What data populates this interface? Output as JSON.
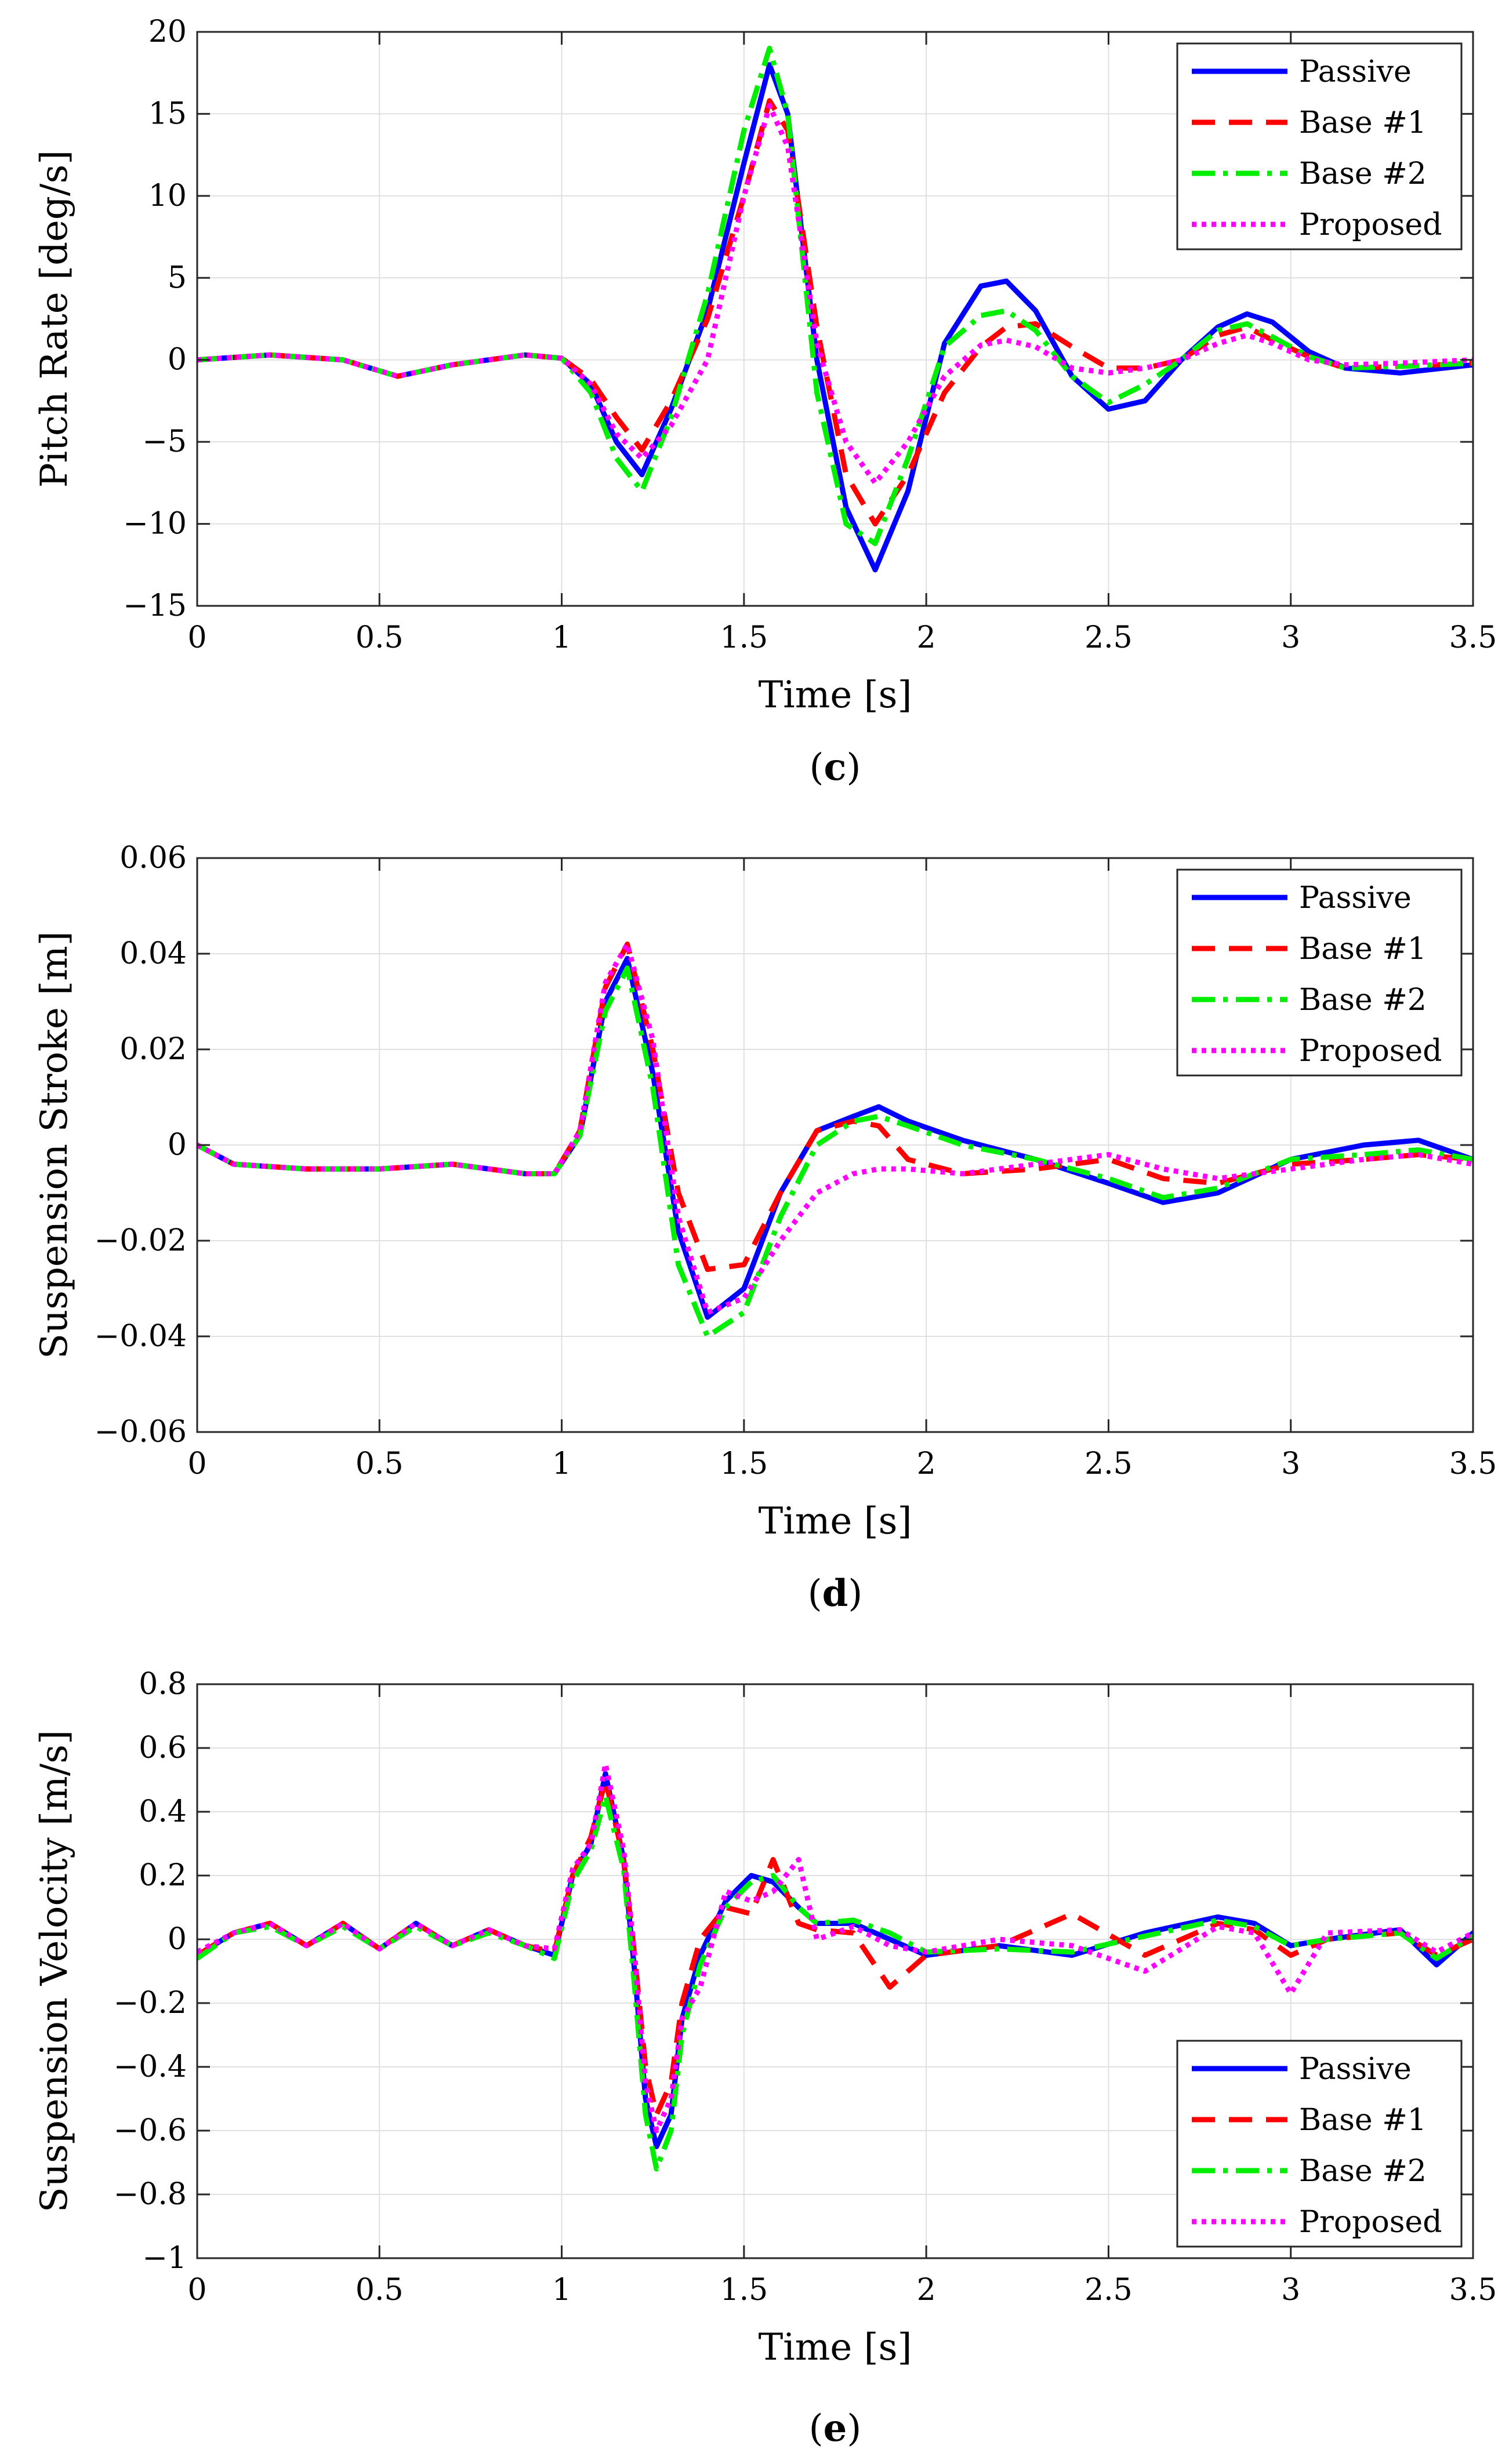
{
  "figure": {
    "series_styles": [
      {
        "name": "Passive",
        "color": "#0000ff",
        "dash": ""
      },
      {
        "name": "Base #1",
        "color": "#ff0000",
        "dash": "40 24"
      },
      {
        "name": "Base #2",
        "color": "#00ee00",
        "dash": "40 14 8 14"
      },
      {
        "name": "Proposed",
        "color": "#ff00ff",
        "dash": "8 9"
      }
    ]
  },
  "chart_data": [
    {
      "id": "c",
      "type": "line",
      "caption_letter": "c",
      "title": "",
      "xlabel": "Time [s]",
      "ylabel": "Pitch Rate [deg/s]",
      "xlim": [
        0,
        3.5
      ],
      "ylim": [
        -15,
        20
      ],
      "xticks": [
        0,
        0.5,
        1,
        1.5,
        2,
        2.5,
        3,
        3.5
      ],
      "xtick_labels": [
        "0",
        "0.5",
        "1",
        "1.5",
        "2",
        "2.5",
        "3",
        "3.5"
      ],
      "yticks": [
        -15,
        -10,
        -5,
        0,
        5,
        10,
        15,
        20
      ],
      "ytick_labels": [
        "−15",
        "−10",
        "−5",
        "0",
        "5",
        "10",
        "15",
        "20"
      ],
      "grid": true,
      "legend_position": "top-right",
      "series": [
        {
          "name": "Passive",
          "x": [
            0,
            0.2,
            0.4,
            0.55,
            0.7,
            0.9,
            1.0,
            1.08,
            1.15,
            1.22,
            1.3,
            1.4,
            1.5,
            1.57,
            1.62,
            1.7,
            1.78,
            1.86,
            1.95,
            2.05,
            2.15,
            2.22,
            2.3,
            2.4,
            2.5,
            2.6,
            2.7,
            2.8,
            2.88,
            2.95,
            3.05,
            3.15,
            3.3,
            3.5
          ],
          "y": [
            0,
            0.3,
            0,
            -1,
            -0.3,
            0.3,
            0.1,
            -1.5,
            -5,
            -7,
            -3,
            3,
            12,
            18,
            15,
            0,
            -9,
            -12.8,
            -8,
            1,
            4.5,
            4.8,
            3,
            -1,
            -3,
            -2.5,
            0,
            2,
            2.8,
            2.3,
            0.5,
            -0.5,
            -0.8,
            -0.3
          ]
        },
        {
          "name": "Base #1",
          "x": [
            0,
            0.2,
            0.4,
            0.55,
            0.7,
            0.9,
            1.0,
            1.08,
            1.15,
            1.22,
            1.3,
            1.4,
            1.5,
            1.57,
            1.62,
            1.7,
            1.78,
            1.86,
            1.95,
            2.05,
            2.15,
            2.22,
            2.3,
            2.4,
            2.5,
            2.6,
            2.7,
            2.8,
            2.88,
            2.95,
            3.05,
            3.15,
            3.3,
            3.5
          ],
          "y": [
            0,
            0.3,
            0,
            -1,
            -0.3,
            0.3,
            0.1,
            -1.2,
            -3.5,
            -5.5,
            -2.5,
            2.5,
            10,
            15.8,
            14,
            2,
            -7,
            -10,
            -7,
            -2,
            0.8,
            2,
            2.2,
            0.8,
            -0.5,
            -0.5,
            0,
            1.5,
            2,
            1.2,
            0.2,
            -0.5,
            -0.4,
            -0.2
          ]
        },
        {
          "name": "Base #2",
          "x": [
            0,
            0.2,
            0.4,
            0.55,
            0.7,
            0.9,
            1.0,
            1.08,
            1.15,
            1.22,
            1.3,
            1.4,
            1.5,
            1.57,
            1.62,
            1.7,
            1.78,
            1.86,
            1.95,
            2.05,
            2.15,
            2.22,
            2.3,
            2.4,
            2.5,
            2.6,
            2.7,
            2.8,
            2.88,
            2.95,
            3.05,
            3.15,
            3.3,
            3.5
          ],
          "y": [
            0,
            0.3,
            0,
            -1,
            -0.3,
            0.3,
            0.1,
            -2,
            -6,
            -8,
            -3.5,
            4,
            14,
            19,
            15,
            -2,
            -10,
            -11.2,
            -6,
            0.8,
            2.7,
            3,
            1.8,
            -1,
            -2.6,
            -1.5,
            0,
            1.8,
            2.2,
            1.4,
            0.2,
            -0.5,
            -0.4,
            -0.2
          ]
        },
        {
          "name": "Proposed",
          "x": [
            0,
            0.2,
            0.4,
            0.55,
            0.7,
            0.9,
            1.0,
            1.08,
            1.15,
            1.22,
            1.3,
            1.4,
            1.5,
            1.57,
            1.62,
            1.7,
            1.78,
            1.86,
            1.95,
            2.05,
            2.15,
            2.22,
            2.3,
            2.4,
            2.5,
            2.6,
            2.7,
            2.8,
            2.88,
            2.95,
            3.05,
            3.15,
            3.3,
            3.5
          ],
          "y": [
            0,
            0.3,
            0,
            -1,
            -0.3,
            0.3,
            0.1,
            -1.5,
            -4.5,
            -6,
            -4,
            0,
            10,
            15.5,
            13,
            1,
            -5,
            -7.5,
            -5,
            -1,
            0.9,
            1.2,
            0.8,
            -0.5,
            -0.8,
            -0.5,
            0,
            1,
            1.5,
            1,
            0,
            -0.3,
            -0.2,
            0
          ]
        }
      ]
    },
    {
      "id": "d",
      "type": "line",
      "caption_letter": "d",
      "title": "",
      "xlabel": "Time [s]",
      "ylabel": "Suspension Stroke [m]",
      "xlim": [
        0,
        3.5
      ],
      "ylim": [
        -0.06,
        0.06
      ],
      "xticks": [
        0,
        0.5,
        1,
        1.5,
        2,
        2.5,
        3,
        3.5
      ],
      "xtick_labels": [
        "0",
        "0.5",
        "1",
        "1.5",
        "2",
        "2.5",
        "3",
        "3.5"
      ],
      "yticks": [
        -0.06,
        -0.04,
        -0.02,
        0,
        0.02,
        0.04,
        0.06
      ],
      "ytick_labels": [
        "−0.06",
        "−0.04",
        "−0.02",
        "0",
        "0.02",
        "0.04",
        "0.06"
      ],
      "grid": true,
      "legend_position": "top-right",
      "series": [
        {
          "name": "Passive",
          "x": [
            0,
            0.1,
            0.3,
            0.5,
            0.7,
            0.9,
            0.98,
            1.05,
            1.12,
            1.18,
            1.25,
            1.32,
            1.4,
            1.5,
            1.6,
            1.7,
            1.8,
            1.87,
            1.95,
            2.1,
            2.3,
            2.5,
            2.65,
            2.8,
            3.0,
            3.2,
            3.35,
            3.5
          ],
          "y": [
            0,
            -0.004,
            -0.005,
            -0.005,
            -0.004,
            -0.006,
            -0.006,
            0.002,
            0.03,
            0.039,
            0.015,
            -0.018,
            -0.036,
            -0.03,
            -0.01,
            0.003,
            0.006,
            0.008,
            0.005,
            0.001,
            -0.003,
            -0.008,
            -0.012,
            -0.01,
            -0.003,
            0,
            0.001,
            -0.003
          ]
        },
        {
          "name": "Base #1",
          "x": [
            0,
            0.1,
            0.3,
            0.5,
            0.7,
            0.9,
            0.98,
            1.05,
            1.12,
            1.18,
            1.25,
            1.32,
            1.4,
            1.5,
            1.6,
            1.7,
            1.8,
            1.87,
            1.95,
            2.1,
            2.3,
            2.5,
            2.65,
            2.8,
            3.0,
            3.2,
            3.35,
            3.5
          ],
          "y": [
            0,
            -0.004,
            -0.005,
            -0.005,
            -0.004,
            -0.006,
            -0.006,
            0.003,
            0.033,
            0.042,
            0.02,
            -0.01,
            -0.026,
            -0.025,
            -0.01,
            0.003,
            0.005,
            0.004,
            -0.003,
            -0.006,
            -0.005,
            -0.003,
            -0.007,
            -0.008,
            -0.004,
            -0.003,
            -0.002,
            -0.003
          ]
        },
        {
          "name": "Base #2",
          "x": [
            0,
            0.1,
            0.3,
            0.5,
            0.7,
            0.9,
            0.98,
            1.05,
            1.12,
            1.18,
            1.25,
            1.32,
            1.4,
            1.5,
            1.6,
            1.7,
            1.8,
            1.87,
            1.95,
            2.1,
            2.3,
            2.5,
            2.65,
            2.8,
            3.0,
            3.2,
            3.35,
            3.5
          ],
          "y": [
            0,
            -0.004,
            -0.005,
            -0.005,
            -0.004,
            -0.006,
            -0.006,
            0.002,
            0.028,
            0.037,
            0.012,
            -0.025,
            -0.04,
            -0.035,
            -0.015,
            0,
            0.005,
            0.006,
            0.004,
            0,
            -0.003,
            -0.007,
            -0.011,
            -0.009,
            -0.003,
            -0.002,
            -0.001,
            -0.003
          ]
        },
        {
          "name": "Proposed",
          "x": [
            0,
            0.1,
            0.3,
            0.5,
            0.7,
            0.9,
            0.98,
            1.05,
            1.12,
            1.18,
            1.25,
            1.32,
            1.4,
            1.5,
            1.6,
            1.7,
            1.8,
            1.87,
            1.95,
            2.1,
            2.3,
            2.5,
            2.65,
            2.8,
            3.0,
            3.2,
            3.35,
            3.5
          ],
          "y": [
            0,
            -0.004,
            -0.005,
            -0.005,
            -0.004,
            -0.006,
            -0.006,
            0.003,
            0.034,
            0.042,
            0.022,
            -0.015,
            -0.035,
            -0.032,
            -0.02,
            -0.01,
            -0.006,
            -0.005,
            -0.005,
            -0.006,
            -0.004,
            -0.002,
            -0.005,
            -0.007,
            -0.005,
            -0.003,
            -0.002,
            -0.004
          ]
        }
      ]
    },
    {
      "id": "e",
      "type": "line",
      "caption_letter": "e",
      "title": "",
      "xlabel": "Time [s]",
      "ylabel": "Suspension Velocity [m/s]",
      "xlim": [
        0,
        3.5
      ],
      "ylim": [
        -1,
        0.8
      ],
      "xticks": [
        0,
        0.5,
        1,
        1.5,
        2,
        2.5,
        3,
        3.5
      ],
      "xtick_labels": [
        "0",
        "0.5",
        "1",
        "1.5",
        "2",
        "2.5",
        "3",
        "3.5"
      ],
      "yticks": [
        -1,
        -0.8,
        -0.6,
        -0.4,
        -0.2,
        0,
        0.2,
        0.4,
        0.6,
        0.8
      ],
      "ytick_labels": [
        "−1",
        "−0.8",
        "−0.6",
        "−0.4",
        "−0.2",
        "0",
        "0.2",
        "0.4",
        "0.6",
        "0.8"
      ],
      "grid": true,
      "legend_position": "bottom-right",
      "series": [
        {
          "name": "Passive",
          "x": [
            0,
            0.1,
            0.2,
            0.3,
            0.4,
            0.5,
            0.6,
            0.7,
            0.8,
            0.9,
            0.98,
            1.03,
            1.08,
            1.12,
            1.17,
            1.2,
            1.23,
            1.26,
            1.3,
            1.33,
            1.38,
            1.45,
            1.52,
            1.58,
            1.65,
            1.7,
            1.8,
            1.9,
            2.0,
            2.2,
            2.4,
            2.6,
            2.8,
            2.9,
            3.0,
            3.1,
            3.3,
            3.4,
            3.5
          ],
          "y": [
            -0.05,
            0.02,
            0.05,
            -0.02,
            0.05,
            -0.03,
            0.05,
            -0.02,
            0.03,
            -0.02,
            -0.05,
            0.2,
            0.3,
            0.52,
            0.25,
            -0.1,
            -0.5,
            -0.65,
            -0.55,
            -0.25,
            -0.05,
            0.12,
            0.2,
            0.18,
            0.1,
            0.05,
            0.05,
            0,
            -0.05,
            -0.02,
            -0.05,
            0.02,
            0.07,
            0.05,
            -0.02,
            0,
            0.03,
            -0.08,
            0.02
          ]
        },
        {
          "name": "Base #1",
          "x": [
            0,
            0.1,
            0.2,
            0.3,
            0.4,
            0.5,
            0.6,
            0.7,
            0.8,
            0.9,
            0.98,
            1.03,
            1.08,
            1.12,
            1.17,
            1.2,
            1.23,
            1.26,
            1.3,
            1.33,
            1.38,
            1.45,
            1.52,
            1.58,
            1.65,
            1.7,
            1.8,
            1.9,
            2.0,
            2.2,
            2.4,
            2.6,
            2.8,
            2.9,
            3.0,
            3.1,
            3.3,
            3.4,
            3.5
          ],
          "y": [
            -0.05,
            0.02,
            0.05,
            -0.02,
            0.05,
            -0.03,
            0.05,
            -0.02,
            0.03,
            -0.02,
            -0.04,
            0.2,
            0.32,
            0.5,
            0.25,
            -0.05,
            -0.4,
            -0.55,
            -0.45,
            -0.2,
            0,
            0.1,
            0.08,
            0.25,
            0.05,
            0.03,
            0.02,
            -0.15,
            -0.05,
            -0.02,
            0.08,
            -0.05,
            0.05,
            0.03,
            -0.05,
            0,
            0.02,
            -0.05,
            0
          ]
        },
        {
          "name": "Base #2",
          "x": [
            0,
            0.1,
            0.2,
            0.3,
            0.4,
            0.5,
            0.6,
            0.7,
            0.8,
            0.9,
            0.98,
            1.03,
            1.08,
            1.12,
            1.17,
            1.2,
            1.23,
            1.26,
            1.3,
            1.33,
            1.38,
            1.45,
            1.52,
            1.58,
            1.65,
            1.7,
            1.8,
            1.9,
            2.0,
            2.2,
            2.4,
            2.6,
            2.8,
            2.9,
            3.0,
            3.1,
            3.3,
            3.4,
            3.5
          ],
          "y": [
            -0.06,
            0.02,
            0.04,
            -0.02,
            0.04,
            -0.03,
            0.04,
            -0.02,
            0.02,
            -0.02,
            -0.06,
            0.18,
            0.28,
            0.45,
            0.22,
            -0.15,
            -0.55,
            -0.72,
            -0.6,
            -0.3,
            -0.08,
            0.1,
            0.18,
            0.2,
            0.1,
            0.05,
            0.06,
            0.02,
            -0.04,
            -0.03,
            -0.04,
            0.01,
            0.06,
            0.04,
            -0.02,
            0,
            0.02,
            -0.06,
            0.01
          ]
        },
        {
          "name": "Proposed",
          "x": [
            0,
            0.1,
            0.2,
            0.3,
            0.4,
            0.5,
            0.6,
            0.7,
            0.8,
            0.9,
            0.98,
            1.03,
            1.08,
            1.12,
            1.17,
            1.2,
            1.23,
            1.26,
            1.3,
            1.33,
            1.38,
            1.45,
            1.52,
            1.58,
            1.65,
            1.7,
            1.8,
            1.9,
            2.0,
            2.2,
            2.4,
            2.6,
            2.8,
            2.9,
            3.0,
            3.1,
            3.3,
            3.4,
            3.5
          ],
          "y": [
            -0.04,
            0.02,
            0.05,
            -0.02,
            0.05,
            -0.03,
            0.05,
            -0.02,
            0.03,
            -0.02,
            -0.03,
            0.22,
            0.3,
            0.55,
            0.28,
            -0.05,
            -0.45,
            -0.6,
            -0.5,
            -0.25,
            -0.15,
            0.15,
            0.12,
            0.15,
            0.25,
            0,
            0.04,
            -0.02,
            -0.04,
            0,
            -0.02,
            -0.1,
            0.04,
            0.02,
            -0.17,
            0.02,
            0.03,
            -0.04,
            0.02
          ]
        }
      ]
    }
  ]
}
